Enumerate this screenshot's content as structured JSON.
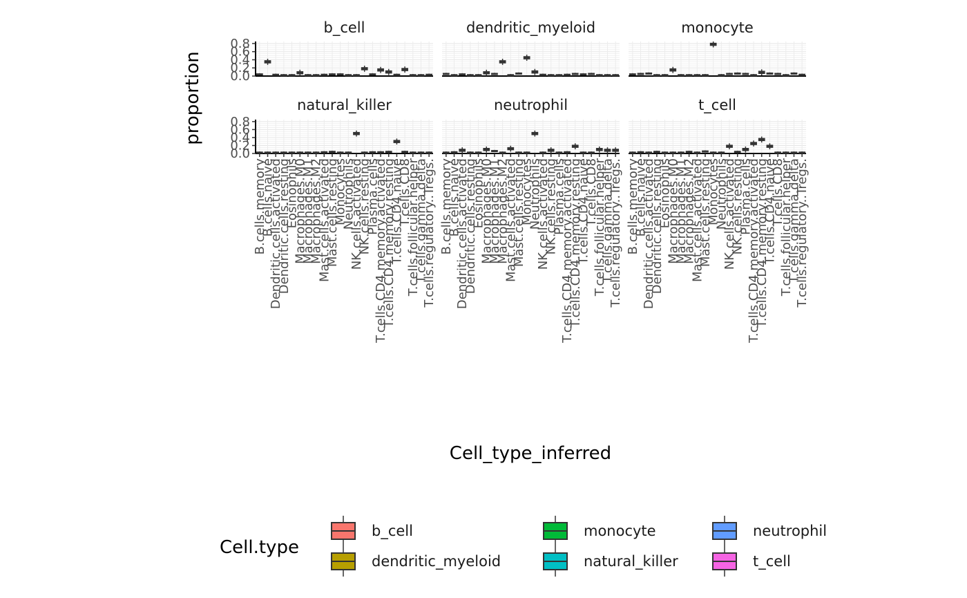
{
  "chart_data": {
    "type": "boxplot",
    "facets": [
      "b_cell",
      "dendritic_myeloid",
      "monocyte",
      "natural_killer",
      "neutrophil",
      "t_cell"
    ],
    "categories": [
      "B.cells.memory",
      "B.cells.naive",
      "Dendritic.cells.activated",
      "Dendritic.cells.resting",
      "Eosinophils",
      "Macrophages.M0",
      "Macrophages.M1",
      "Macrophages.M2",
      "Mast.cells.activated",
      "Mast.cells.resting",
      "Monocytes",
      "Neutrophils",
      "NK.cells.activated",
      "NK.cells.resting",
      "Plasma.cells",
      "T.cells.CD4.memory.activated",
      "T.cells.CD4.memory.resting",
      "T.cells.CD4.naive",
      "T.cells.CD8",
      "T.cells.follicular.helper",
      "T.cells.gamma.delta",
      "T.cells.regulatory..Tregs."
    ],
    "values_by_facet": {
      "b_cell": [
        0.05,
        0.35,
        0.04,
        0.03,
        0.03,
        0.08,
        0.03,
        0.03,
        0.04,
        0.05,
        0.05,
        0.03,
        0.03,
        0.18,
        0.05,
        0.15,
        0.1,
        0.04,
        0.16,
        0.03,
        0.03,
        0.04
      ],
      "dendritic_myeloid": [
        0.06,
        0.03,
        0.05,
        0.03,
        0.03,
        0.08,
        0.06,
        0.35,
        0.03,
        0.07,
        0.45,
        0.1,
        0.04,
        0.03,
        0.03,
        0.04,
        0.06,
        0.05,
        0.06,
        0.03,
        0.03,
        0.03
      ],
      "monocyte": [
        0.05,
        0.06,
        0.07,
        0.03,
        0.03,
        0.15,
        0.03,
        0.03,
        0.03,
        0.03,
        0.78,
        0.03,
        0.06,
        0.07,
        0.06,
        0.03,
        0.09,
        0.07,
        0.06,
        0.03,
        0.07,
        0.04
      ],
      "natural_killer": [
        0.03,
        0.03,
        0.03,
        0.03,
        0.03,
        0.03,
        0.03,
        0.03,
        0.04,
        0.05,
        0.03,
        0.03,
        0.5,
        0.03,
        0.04,
        0.04,
        0.05,
        0.3,
        0.05,
        0.03,
        0.03,
        0.03
      ],
      "neutrophil": [
        0.03,
        0.04,
        0.08,
        0.03,
        0.03,
        0.1,
        0.07,
        0.03,
        0.12,
        0.03,
        0.03,
        0.5,
        0.03,
        0.08,
        0.03,
        0.04,
        0.18,
        0.03,
        0.03,
        0.1,
        0.08,
        0.08
      ],
      "t_cell": [
        0.03,
        0.04,
        0.03,
        0.05,
        0.03,
        0.03,
        0.03,
        0.05,
        0.03,
        0.06,
        0.03,
        0.03,
        0.18,
        0.05,
        0.1,
        0.25,
        0.35,
        0.18,
        0.03,
        0.03,
        0.03,
        0.03
      ]
    },
    "xlabel": "Cell_type_inferred",
    "ylabel": "proportion",
    "yticks": [
      "0.0",
      "0.2",
      "0.4",
      "0.6",
      "0.8"
    ],
    "ylim": [
      0,
      0.85
    ],
    "legend": {
      "title": "Cell.type",
      "position": "bottom",
      "entries": [
        {
          "name": "b_cell",
          "color": "#F8766D"
        },
        {
          "name": "dendritic_myeloid",
          "color": "#B79F00"
        },
        {
          "name": "monocyte",
          "color": "#00BA38"
        },
        {
          "name": "natural_killer",
          "color": "#00BFC4"
        },
        {
          "name": "neutrophil",
          "color": "#619CFF"
        },
        {
          "name": "t_cell",
          "color": "#F564E3"
        }
      ]
    },
    "grid": true
  }
}
